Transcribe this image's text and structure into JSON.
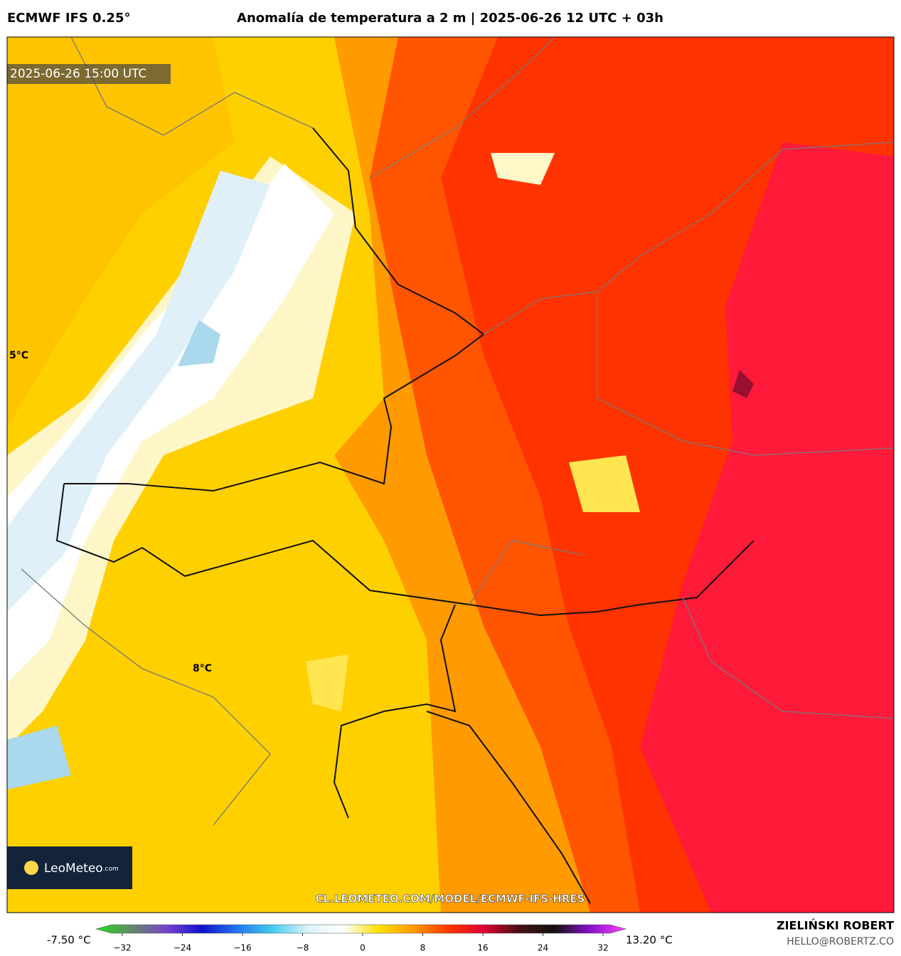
{
  "header": {
    "model": "ECMWF IFS 0.25°",
    "title": "Anomalía de temperatura a 2 m | 2025-06-26 12 UTC + 03h"
  },
  "map": {
    "timestamp": "2025-06-26 15:00 UTC",
    "labels": [
      "5°C",
      "8°C"
    ],
    "logo": {
      "name": "LeoMeteo",
      "suffix": ".com"
    },
    "url": "CL.LEOMETEO.COM/MODEL/ECMWF-IFS-HRES"
  },
  "colorbar": {
    "min_label": "-7.50 °C",
    "max_label": "13.20 °C",
    "lim": [
      -32,
      32
    ],
    "ticks": [
      {
        "value": -32,
        "label": "−32"
      },
      {
        "value": -24,
        "label": "−24"
      },
      {
        "value": -16,
        "label": "−16"
      },
      {
        "value": -8,
        "label": "−8"
      },
      0,
      8,
      16,
      24,
      32
    ],
    "colors": [
      "#22dd22",
      "#668866",
      "#7744cc",
      "#1111cc",
      "#2277ee",
      "#44ccee",
      "#ddf2f8",
      "#ffffff",
      "#ffe000",
      "#ff9900",
      "#ff3300",
      "#dd0033",
      "#441111",
      "#111111",
      "#8811cc",
      "#ff44ff"
    ]
  },
  "footer": {
    "author": "ZIELIŃSKI ROBERT",
    "email": "HELLO@ROBERTZ.CO"
  }
}
